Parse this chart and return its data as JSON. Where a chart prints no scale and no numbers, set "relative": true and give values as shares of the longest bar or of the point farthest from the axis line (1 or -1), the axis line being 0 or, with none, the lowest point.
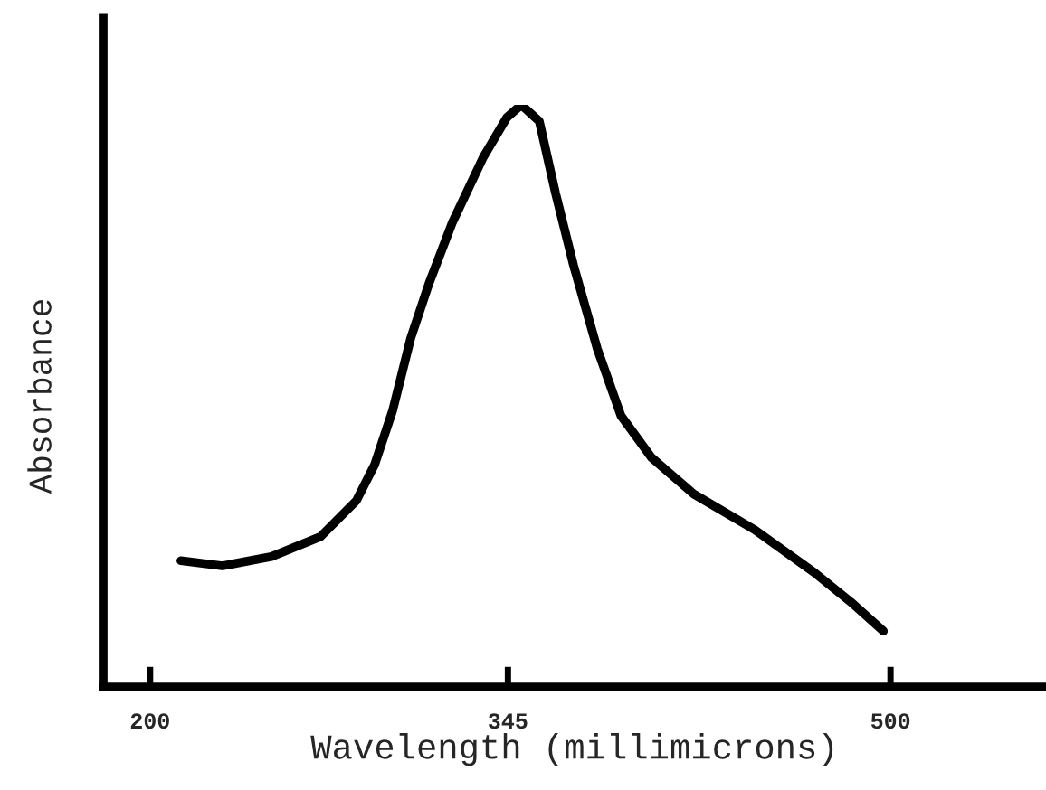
{
  "chart_data": {
    "type": "line",
    "relative": true,
    "xlabel": "Wavelength (millimicrons)",
    "ylabel": "Absorbance",
    "x": [
      212.5,
      229.3,
      249.2,
      269.0,
      283.6,
      291.0,
      298.3,
      305.6,
      313.0,
      322.5,
      335.0,
      344.5,
      350.4,
      357.7,
      364.3,
      371.6,
      381.2,
      390.8,
      403.2,
      420.1,
      445.0,
      469.3,
      483.9,
      497.1
    ],
    "series": [
      {
        "color": "#000000",
        "values": [
          0.217,
          0.208,
          0.224,
          0.258,
          0.32,
          0.382,
          0.475,
          0.599,
          0.693,
          0.798,
          0.91,
          0.978,
          1,
          0.972,
          0.848,
          0.724,
          0.581,
          0.466,
          0.394,
          0.332,
          0.27,
          0.196,
          0.146,
          0.096
        ]
      }
    ],
    "xlim": [
      181,
      563
    ],
    "xticks": [
      200,
      345,
      500
    ],
    "grid": false,
    "legend": false,
    "marker": "none",
    "line_style": "solid"
  }
}
